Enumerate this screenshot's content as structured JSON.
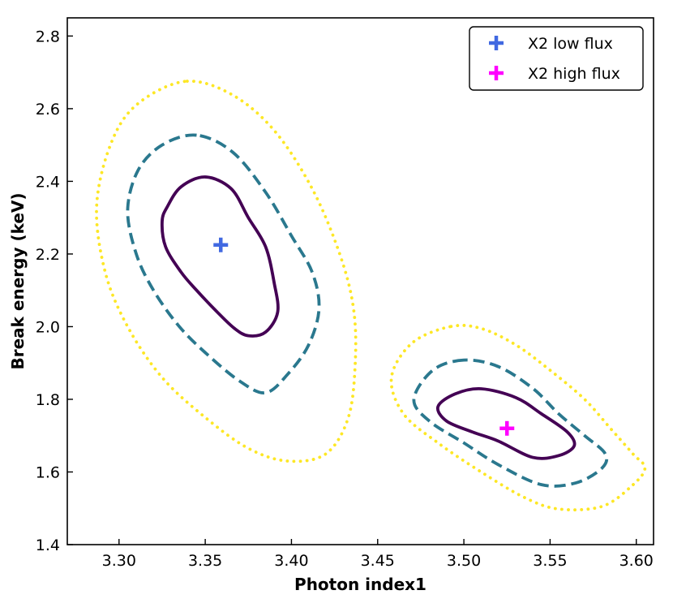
{
  "chart_data": {
    "type": "scatter",
    "title": "",
    "xlabel": "Photon index1",
    "ylabel": "Break energy (keV)",
    "xlim": [
      3.27,
      3.61
    ],
    "ylim": [
      1.4,
      2.85
    ],
    "xticks": [
      "3.30",
      "3.35",
      "3.40",
      "3.45",
      "3.50",
      "3.55",
      "3.60"
    ],
    "yticks": [
      "1.4",
      "1.6",
      "1.8",
      "2.0",
      "2.2",
      "2.4",
      "2.6",
      "2.8"
    ],
    "legend_position": "top-right",
    "series": [
      {
        "name": "X2 low flux",
        "color": "#4169e1",
        "marker": "plus",
        "best_fit": {
          "x": 3.359,
          "y": 2.225
        },
        "contours": [
          {
            "level": "inner",
            "style": "solid",
            "color": "#440154",
            "points": [
              [
                3.35,
                2.412
              ],
              [
                3.336,
                2.385
              ],
              [
                3.328,
                2.33
              ],
              [
                3.325,
                2.29
              ],
              [
                3.327,
                2.22
              ],
              [
                3.336,
                2.15
              ],
              [
                3.345,
                2.1
              ],
              [
                3.357,
                2.04
              ],
              [
                3.367,
                1.995
              ],
              [
                3.375,
                1.975
              ],
              [
                3.385,
                1.985
              ],
              [
                3.392,
                2.04
              ],
              [
                3.39,
                2.12
              ],
              [
                3.385,
                2.22
              ],
              [
                3.375,
                2.3
              ],
              [
                3.365,
                2.38
              ]
            ]
          },
          {
            "level": "middle",
            "style": "dashed",
            "color": "#2a788e",
            "points": [
              [
                3.345,
                2.527
              ],
              [
                3.325,
                2.5
              ],
              [
                3.311,
                2.43
              ],
              [
                3.305,
                2.32
              ],
              [
                3.31,
                2.2
              ],
              [
                3.32,
                2.1
              ],
              [
                3.335,
                2.0
              ],
              [
                3.352,
                1.92
              ],
              [
                3.37,
                1.85
              ],
              [
                3.385,
                1.818
              ],
              [
                3.398,
                1.87
              ],
              [
                3.41,
                1.95
              ],
              [
                3.416,
                2.05
              ],
              [
                3.412,
                2.15
              ],
              [
                3.4,
                2.25
              ],
              [
                3.385,
                2.37
              ],
              [
                3.366,
                2.48
              ]
            ]
          },
          {
            "level": "outer",
            "style": "dotted",
            "color": "#fde725",
            "points": [
              [
                3.338,
                2.675
              ],
              [
                3.31,
                2.61
              ],
              [
                3.295,
                2.5
              ],
              [
                3.287,
                2.33
              ],
              [
                3.292,
                2.15
              ],
              [
                3.305,
                2.0
              ],
              [
                3.325,
                1.86
              ],
              [
                3.35,
                1.75
              ],
              [
                3.375,
                1.665
              ],
              [
                3.398,
                1.63
              ],
              [
                3.42,
                1.65
              ],
              [
                3.433,
                1.75
              ],
              [
                3.437,
                1.9
              ],
              [
                3.436,
                2.05
              ],
              [
                3.428,
                2.2
              ],
              [
                3.412,
                2.38
              ],
              [
                3.39,
                2.54
              ],
              [
                3.365,
                2.64
              ]
            ]
          }
        ]
      },
      {
        "name": "X2 high flux",
        "color": "#ff00ff",
        "marker": "plus",
        "best_fit": {
          "x": 3.525,
          "y": 1.72
        },
        "contours": [
          {
            "level": "inner",
            "style": "solid",
            "color": "#440154",
            "points": [
              [
                3.51,
                1.829
              ],
              [
                3.495,
                1.815
              ],
              [
                3.485,
                1.78
              ],
              [
                3.49,
                1.74
              ],
              [
                3.505,
                1.71
              ],
              [
                3.52,
                1.685
              ],
              [
                3.54,
                1.64
              ],
              [
                3.555,
                1.645
              ],
              [
                3.564,
                1.672
              ],
              [
                3.56,
                1.71
              ],
              [
                3.545,
                1.76
              ],
              [
                3.53,
                1.805
              ]
            ]
          },
          {
            "level": "middle",
            "style": "dashed",
            "color": "#2a788e",
            "points": [
              [
                3.5,
                1.908
              ],
              [
                3.482,
                1.88
              ],
              [
                3.471,
                1.8
              ],
              [
                3.48,
                1.74
              ],
              [
                3.5,
                1.68
              ],
              [
                3.52,
                1.62
              ],
              [
                3.545,
                1.565
              ],
              [
                3.565,
                1.57
              ],
              [
                3.58,
                1.61
              ],
              [
                3.582,
                1.65
              ],
              [
                3.57,
                1.7
              ],
              [
                3.555,
                1.76
              ],
              [
                3.54,
                1.83
              ],
              [
                3.52,
                1.89
              ]
            ]
          },
          {
            "level": "outer",
            "style": "dotted",
            "color": "#fde725",
            "points": [
              [
                3.492,
                2.0
              ],
              [
                3.47,
                1.955
              ],
              [
                3.458,
                1.86
              ],
              [
                3.465,
                1.76
              ],
              [
                3.485,
                1.68
              ],
              [
                3.51,
                1.6
              ],
              [
                3.535,
                1.53
              ],
              [
                3.555,
                1.498
              ],
              [
                3.58,
                1.505
              ],
              [
                3.597,
                1.56
              ],
              [
                3.605,
                1.61
              ],
              [
                3.598,
                1.65
              ],
              [
                3.585,
                1.72
              ],
              [
                3.57,
                1.8
              ],
              [
                3.55,
                1.88
              ],
              [
                3.53,
                1.95
              ],
              [
                3.51,
                1.995
              ]
            ]
          }
        ]
      }
    ]
  }
}
